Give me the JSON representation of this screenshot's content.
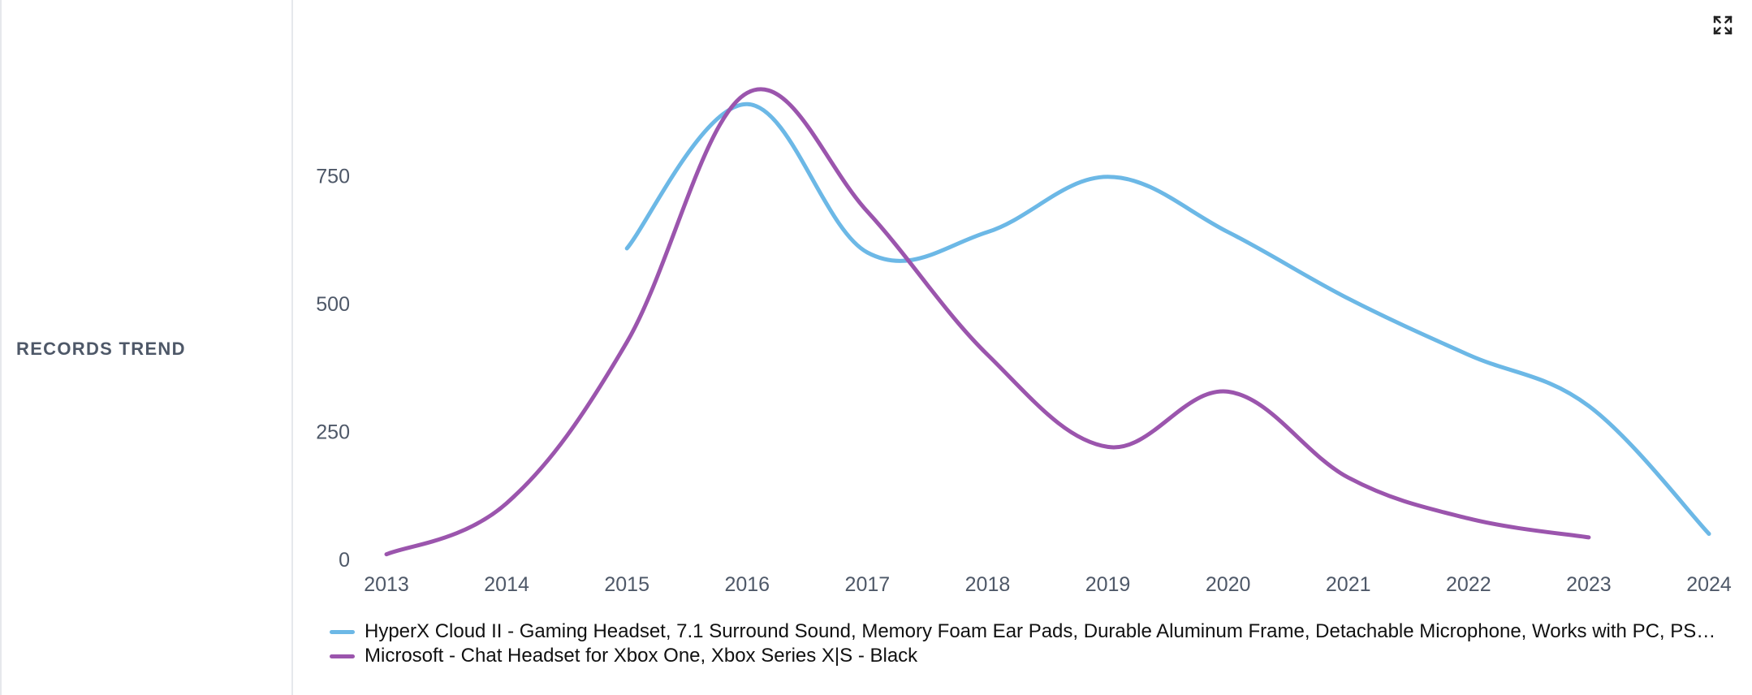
{
  "panel": {
    "label": "RECORDS TREND"
  },
  "toolbar": {
    "expand_icon": "expand-icon"
  },
  "chart_data": {
    "type": "line",
    "x": [
      2013,
      2014,
      2015,
      2016,
      2017,
      2018,
      2019,
      2020,
      2021,
      2022,
      2023,
      2024
    ],
    "ylim": [
      0,
      1000
    ],
    "y_ticks": [
      "0",
      "250",
      "500",
      "750"
    ],
    "x_ticks": [
      "2013",
      "2014",
      "2015",
      "2016",
      "2017",
      "2018",
      "2019",
      "2020",
      "2021",
      "2022",
      "2023",
      "2024"
    ],
    "grid": false,
    "legend_position": "bottom-left",
    "series": [
      {
        "name": "HyperX Cloud II - Gaming Headset, 7.1 Surround Sound, Memory Foam Ear Pads, Durable Aluminum Frame, Detachable Microphone, Works with PC, PS…",
        "color": "#6cb8e6",
        "values": [
          null,
          null,
          608,
          890,
          600,
          640,
          748,
          640,
          510,
          400,
          300,
          50
        ]
      },
      {
        "name": "Microsoft - Chat Headset for Xbox One, Xbox Series X|S - Black",
        "color": "#9b55ad",
        "values": [
          10,
          110,
          425,
          912,
          680,
          400,
          220,
          328,
          160,
          80,
          43,
          null
        ]
      }
    ]
  }
}
